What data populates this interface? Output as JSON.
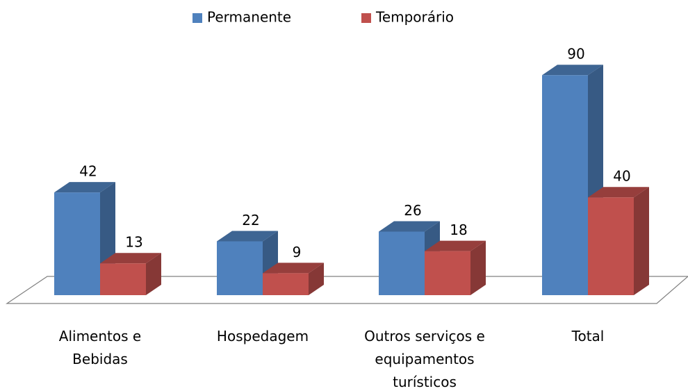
{
  "chart_data": {
    "type": "bar3d",
    "categories": [
      "Alimentos e Bebidas",
      "Hospedagem",
      "Outros serviços e equipamentos turísticos",
      "Total"
    ],
    "series": [
      {
        "name": "Permanente",
        "color": "#4f81bd",
        "values": [
          42,
          22,
          26,
          90
        ]
      },
      {
        "name": "Temporário",
        "color": "#c0504d",
        "values": [
          13,
          9,
          18,
          40
        ]
      }
    ],
    "legend": "top"
  }
}
